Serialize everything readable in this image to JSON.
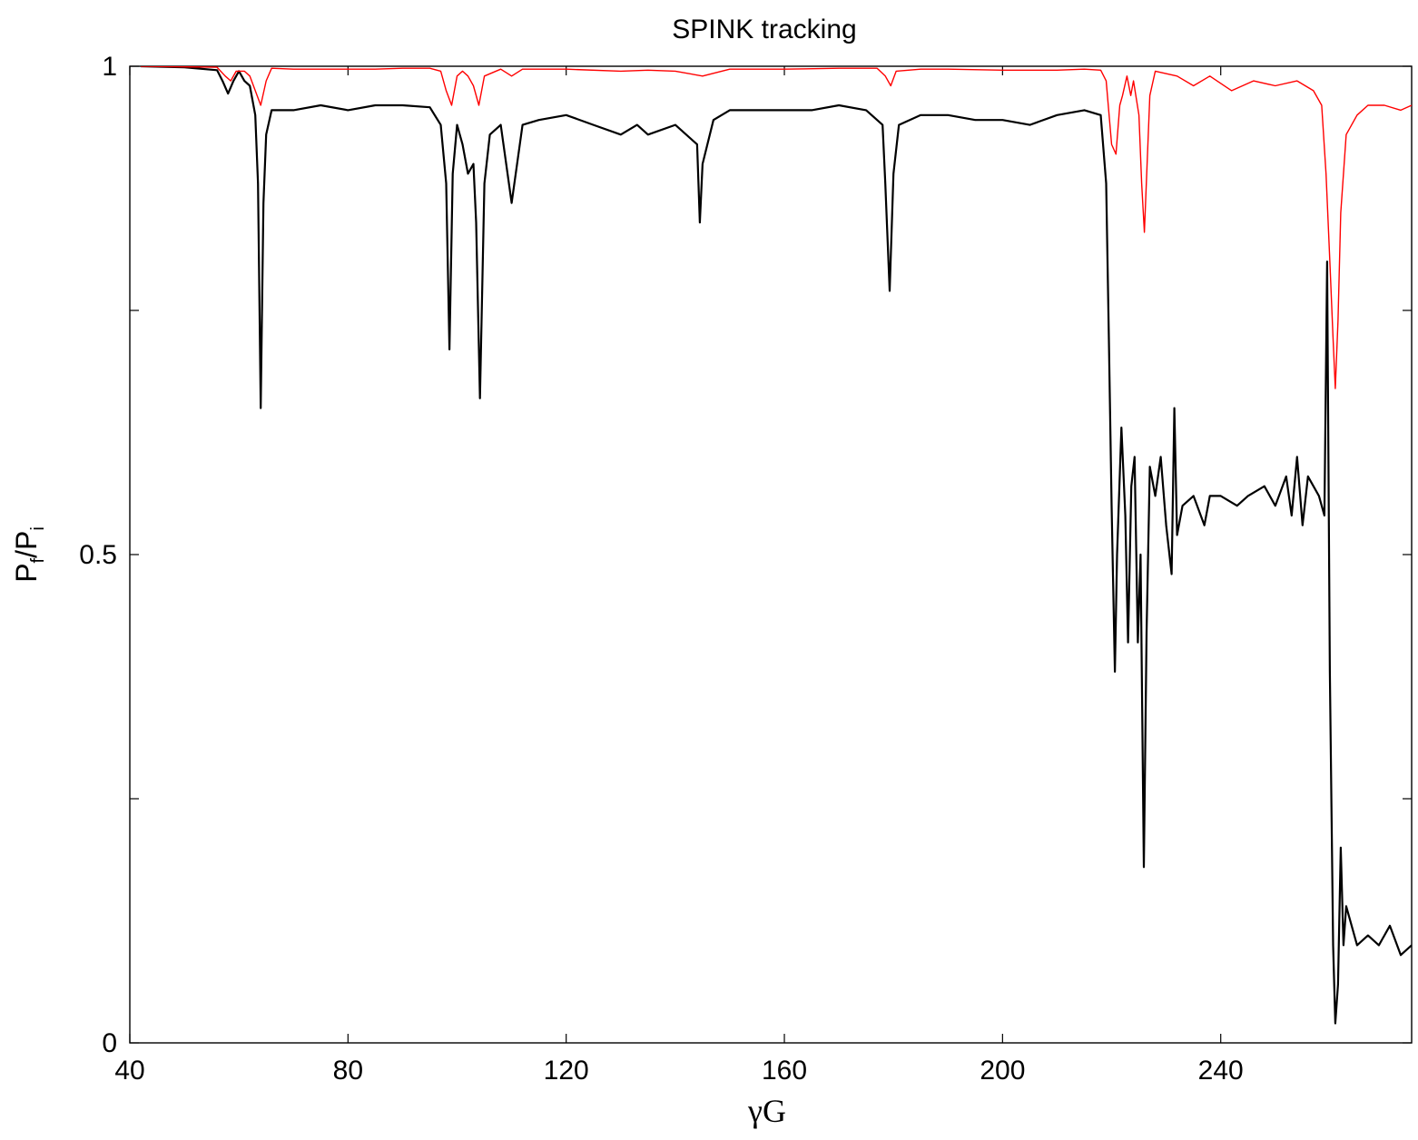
{
  "chart_data": {
    "type": "line",
    "title": "SPINK tracking",
    "xlabel": "γG",
    "ylabel": {
      "base": "P",
      "sub1": "f",
      "slash": "/",
      "base2": "P",
      "sub2": "i"
    },
    "xlim": [
      40,
      275
    ],
    "ylim": [
      0,
      1
    ],
    "xticks": [
      40,
      80,
      120,
      160,
      200,
      240
    ],
    "xtick_labels": [
      "40",
      "80",
      "120",
      "160",
      "200",
      "240"
    ],
    "yticks": [
      0,
      0.25,
      0.5,
      0.75,
      1
    ],
    "ytick_labels": [
      "0",
      "",
      "0.5",
      "",
      "1"
    ],
    "grid": false,
    "legend": "none",
    "series": [
      {
        "color": "#000000",
        "points": [
          [
            42,
            1.0
          ],
          [
            50,
            0.999
          ],
          [
            56,
            0.996
          ],
          [
            57,
            0.985
          ],
          [
            58,
            0.972
          ],
          [
            59,
            0.985
          ],
          [
            60,
            0.995
          ],
          [
            61,
            0.985
          ],
          [
            62,
            0.98
          ],
          [
            63,
            0.95
          ],
          [
            63.5,
            0.88
          ],
          [
            64,
            0.65
          ],
          [
            64.5,
            0.86
          ],
          [
            65,
            0.93
          ],
          [
            66,
            0.955
          ],
          [
            70,
            0.955
          ],
          [
            75,
            0.96
          ],
          [
            80,
            0.955
          ],
          [
            85,
            0.96
          ],
          [
            90,
            0.96
          ],
          [
            95,
            0.958
          ],
          [
            97,
            0.94
          ],
          [
            98,
            0.88
          ],
          [
            98.6,
            0.71
          ],
          [
            99.2,
            0.89
          ],
          [
            100,
            0.94
          ],
          [
            101,
            0.92
          ],
          [
            102,
            0.89
          ],
          [
            103,
            0.9
          ],
          [
            103.5,
            0.84
          ],
          [
            104.2,
            0.66
          ],
          [
            105,
            0.88
          ],
          [
            106,
            0.93
          ],
          [
            108,
            0.94
          ],
          [
            110,
            0.86
          ],
          [
            111,
            0.9
          ],
          [
            112,
            0.94
          ],
          [
            115,
            0.945
          ],
          [
            120,
            0.95
          ],
          [
            125,
            0.94
          ],
          [
            130,
            0.93
          ],
          [
            133,
            0.94
          ],
          [
            135,
            0.93
          ],
          [
            140,
            0.94
          ],
          [
            144,
            0.92
          ],
          [
            144.5,
            0.84
          ],
          [
            145,
            0.9
          ],
          [
            147,
            0.945
          ],
          [
            150,
            0.955
          ],
          [
            155,
            0.955
          ],
          [
            160,
            0.955
          ],
          [
            165,
            0.955
          ],
          [
            170,
            0.96
          ],
          [
            175,
            0.955
          ],
          [
            178,
            0.94
          ],
          [
            178.5,
            0.88
          ],
          [
            179.3,
            0.77
          ],
          [
            180,
            0.89
          ],
          [
            181,
            0.94
          ],
          [
            185,
            0.95
          ],
          [
            190,
            0.95
          ],
          [
            195,
            0.945
          ],
          [
            200,
            0.945
          ],
          [
            205,
            0.94
          ],
          [
            210,
            0.95
          ],
          [
            215,
            0.955
          ],
          [
            218,
            0.95
          ],
          [
            219,
            0.88
          ],
          [
            219.5,
            0.72
          ],
          [
            220,
            0.55
          ],
          [
            220.6,
            0.38
          ],
          [
            221,
            0.5
          ],
          [
            221.8,
            0.63
          ],
          [
            222.5,
            0.54
          ],
          [
            223,
            0.41
          ],
          [
            223.6,
            0.57
          ],
          [
            224.2,
            0.6
          ],
          [
            224.8,
            0.41
          ],
          [
            225.3,
            0.5
          ],
          [
            225.9,
            0.18
          ],
          [
            226.4,
            0.42
          ],
          [
            227,
            0.59
          ],
          [
            228,
            0.56
          ],
          [
            229,
            0.6
          ],
          [
            230,
            0.53
          ],
          [
            231,
            0.48
          ],
          [
            231.5,
            0.65
          ],
          [
            232,
            0.52
          ],
          [
            233,
            0.55
          ],
          [
            235,
            0.56
          ],
          [
            237,
            0.53
          ],
          [
            238,
            0.56
          ],
          [
            240,
            0.56
          ],
          [
            243,
            0.55
          ],
          [
            245,
            0.56
          ],
          [
            248,
            0.57
          ],
          [
            250,
            0.55
          ],
          [
            252,
            0.58
          ],
          [
            253,
            0.54
          ],
          [
            254,
            0.6
          ],
          [
            255,
            0.53
          ],
          [
            256,
            0.58
          ],
          [
            258,
            0.56
          ],
          [
            259,
            0.54
          ],
          [
            259.5,
            0.8
          ],
          [
            260,
            0.38
          ],
          [
            260.6,
            0.1
          ],
          [
            261,
            0.02
          ],
          [
            261.5,
            0.06
          ],
          [
            262,
            0.2
          ],
          [
            262.5,
            0.1
          ],
          [
            263,
            0.14
          ],
          [
            265,
            0.1
          ],
          [
            267,
            0.11
          ],
          [
            269,
            0.1
          ],
          [
            271,
            0.12
          ],
          [
            273,
            0.09
          ],
          [
            275,
            0.1
          ]
        ]
      },
      {
        "color": "#ff0000",
        "points": [
          [
            42,
            1.0
          ],
          [
            56,
            0.999
          ],
          [
            57.5,
            0.99
          ],
          [
            58.5,
            0.985
          ],
          [
            59.5,
            0.995
          ],
          [
            61,
            0.995
          ],
          [
            62,
            0.99
          ],
          [
            63,
            0.975
          ],
          [
            64,
            0.96
          ],
          [
            65,
            0.985
          ],
          [
            66,
            0.998
          ],
          [
            70,
            0.997
          ],
          [
            75,
            0.997
          ],
          [
            80,
            0.997
          ],
          [
            85,
            0.997
          ],
          [
            90,
            0.998
          ],
          [
            95,
            0.998
          ],
          [
            97,
            0.995
          ],
          [
            98,
            0.975
          ],
          [
            99,
            0.96
          ],
          [
            100,
            0.99
          ],
          [
            101,
            0.995
          ],
          [
            102,
            0.99
          ],
          [
            103,
            0.98
          ],
          [
            104,
            0.96
          ],
          [
            105,
            0.99
          ],
          [
            108,
            0.997
          ],
          [
            110,
            0.99
          ],
          [
            112,
            0.997
          ],
          [
            120,
            0.997
          ],
          [
            130,
            0.995
          ],
          [
            135,
            0.996
          ],
          [
            140,
            0.995
          ],
          [
            145,
            0.99
          ],
          [
            150,
            0.997
          ],
          [
            160,
            0.997
          ],
          [
            170,
            0.998
          ],
          [
            177,
            0.998
          ],
          [
            178.5,
            0.99
          ],
          [
            179.5,
            0.98
          ],
          [
            180.5,
            0.995
          ],
          [
            185,
            0.997
          ],
          [
            190,
            0.997
          ],
          [
            200,
            0.996
          ],
          [
            210,
            0.996
          ],
          [
            215,
            0.997
          ],
          [
            218,
            0.996
          ],
          [
            219,
            0.985
          ],
          [
            220,
            0.92
          ],
          [
            220.8,
            0.91
          ],
          [
            221.5,
            0.96
          ],
          [
            222,
            0.97
          ],
          [
            222.8,
            0.99
          ],
          [
            223.5,
            0.97
          ],
          [
            224,
            0.985
          ],
          [
            225,
            0.95
          ],
          [
            225.5,
            0.88
          ],
          [
            226,
            0.83
          ],
          [
            226.5,
            0.9
          ],
          [
            227,
            0.97
          ],
          [
            228,
            0.995
          ],
          [
            232,
            0.99
          ],
          [
            235,
            0.98
          ],
          [
            238,
            0.99
          ],
          [
            242,
            0.975
          ],
          [
            246,
            0.985
          ],
          [
            250,
            0.98
          ],
          [
            254,
            0.985
          ],
          [
            257,
            0.975
          ],
          [
            258.5,
            0.96
          ],
          [
            259.3,
            0.89
          ],
          [
            260,
            0.8
          ],
          [
            260.6,
            0.72
          ],
          [
            261,
            0.67
          ],
          [
            261.5,
            0.74
          ],
          [
            262,
            0.85
          ],
          [
            263,
            0.93
          ],
          [
            265,
            0.95
          ],
          [
            267,
            0.96
          ],
          [
            270,
            0.96
          ],
          [
            273,
            0.955
          ],
          [
            275,
            0.96
          ]
        ]
      }
    ]
  }
}
